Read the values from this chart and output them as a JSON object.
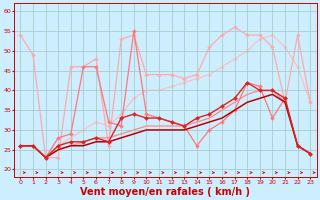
{
  "bg_color": "#cceeff",
  "grid_color": "#aacccc",
  "xlabel": "Vent moyen/en rafales ( km/h )",
  "xlabel_color": "#cc0000",
  "xlabel_fontsize": 7,
  "ylabel_ticks": [
    20,
    25,
    30,
    35,
    40,
    45,
    50,
    55,
    60
  ],
  "xlim": [
    -0.5,
    23.5
  ],
  "ylim": [
    18,
    62
  ],
  "xticks": [
    0,
    1,
    2,
    3,
    4,
    5,
    6,
    7,
    8,
    9,
    10,
    11,
    12,
    13,
    14,
    15,
    16,
    17,
    18,
    19,
    20,
    21,
    22,
    23
  ],
  "series": [
    {
      "x": [
        0,
        1,
        2,
        3,
        4,
        5,
        6,
        7,
        8,
        9,
        10,
        11,
        12,
        13,
        14,
        15,
        16,
        17,
        18,
        19,
        20,
        21,
        22,
        23
      ],
      "y": [
        54,
        49,
        23,
        23,
        46,
        46,
        48,
        26,
        53,
        54,
        44,
        44,
        44,
        43,
        44,
        51,
        54,
        56,
        54,
        54,
        51,
        37,
        54,
        37
      ],
      "color": "#ffaaaa",
      "lw": 0.9,
      "marker": "D",
      "markersize": 2.0,
      "zorder": 2
    },
    {
      "x": [
        0,
        1,
        2,
        3,
        4,
        5,
        6,
        7,
        8,
        9,
        10,
        11,
        12,
        13,
        14,
        15,
        16,
        17,
        18,
        19,
        20,
        21,
        22,
        23
      ],
      "y": [
        26,
        26,
        23,
        28,
        29,
        46,
        46,
        32,
        31,
        55,
        34,
        33,
        32,
        31,
        26,
        30,
        32,
        35,
        42,
        41,
        33,
        38,
        26,
        24
      ],
      "color": "#ff7777",
      "lw": 0.9,
      "marker": "D",
      "markersize": 2.0,
      "zorder": 3
    },
    {
      "x": [
        0,
        1,
        2,
        3,
        4,
        5,
        6,
        7,
        8,
        9,
        10,
        11,
        12,
        13,
        14,
        15,
        16,
        17,
        18,
        19,
        20,
        21,
        22,
        23
      ],
      "y": [
        26,
        26,
        23,
        26,
        27,
        27,
        28,
        27,
        33,
        34,
        33,
        33,
        32,
        31,
        33,
        34,
        36,
        38,
        42,
        40,
        40,
        38,
        26,
        24
      ],
      "color": "#dd2222",
      "lw": 1.0,
      "marker": "D",
      "markersize": 2.2,
      "zorder": 5
    },
    {
      "x": [
        0,
        1,
        2,
        3,
        4,
        5,
        6,
        7,
        8,
        9,
        10,
        11,
        12,
        13,
        14,
        15,
        16,
        17,
        18,
        19,
        20,
        21,
        22,
        23
      ],
      "y": [
        26,
        26,
        23,
        25,
        26,
        26,
        27,
        27,
        28,
        29,
        30,
        30,
        30,
        30,
        31,
        32,
        33,
        35,
        37,
        38,
        39,
        37,
        26,
        24
      ],
      "color": "#bb0000",
      "lw": 1.1,
      "marker": null,
      "markersize": 0,
      "zorder": 4
    },
    {
      "x": [
        0,
        1,
        2,
        3,
        4,
        5,
        6,
        7,
        8,
        9,
        10,
        11,
        12,
        13,
        14,
        15,
        16,
        17,
        18,
        19,
        20,
        21,
        22,
        23
      ],
      "y": [
        26,
        26,
        23,
        25,
        26,
        27,
        28,
        28,
        29,
        30,
        31,
        31,
        31,
        31,
        32,
        33,
        35,
        37,
        39,
        40,
        40,
        37,
        26,
        24
      ],
      "color": "#ff8888",
      "lw": 0.9,
      "marker": null,
      "markersize": 0,
      "zorder": 2
    },
    {
      "x": [
        0,
        1,
        2,
        3,
        4,
        5,
        6,
        7,
        8,
        9,
        10,
        11,
        12,
        13,
        14,
        15,
        16,
        17,
        18,
        19,
        20,
        21,
        22,
        23
      ],
      "y": [
        26,
        26,
        23,
        26,
        28,
        30,
        32,
        31,
        34,
        38,
        40,
        40,
        41,
        42,
        43,
        44,
        46,
        48,
        50,
        53,
        54,
        51,
        46,
        37
      ],
      "color": "#ffbbbb",
      "lw": 0.8,
      "marker": "D",
      "markersize": 1.8,
      "zorder": 1
    }
  ],
  "arrow_color": "#cc0000"
}
